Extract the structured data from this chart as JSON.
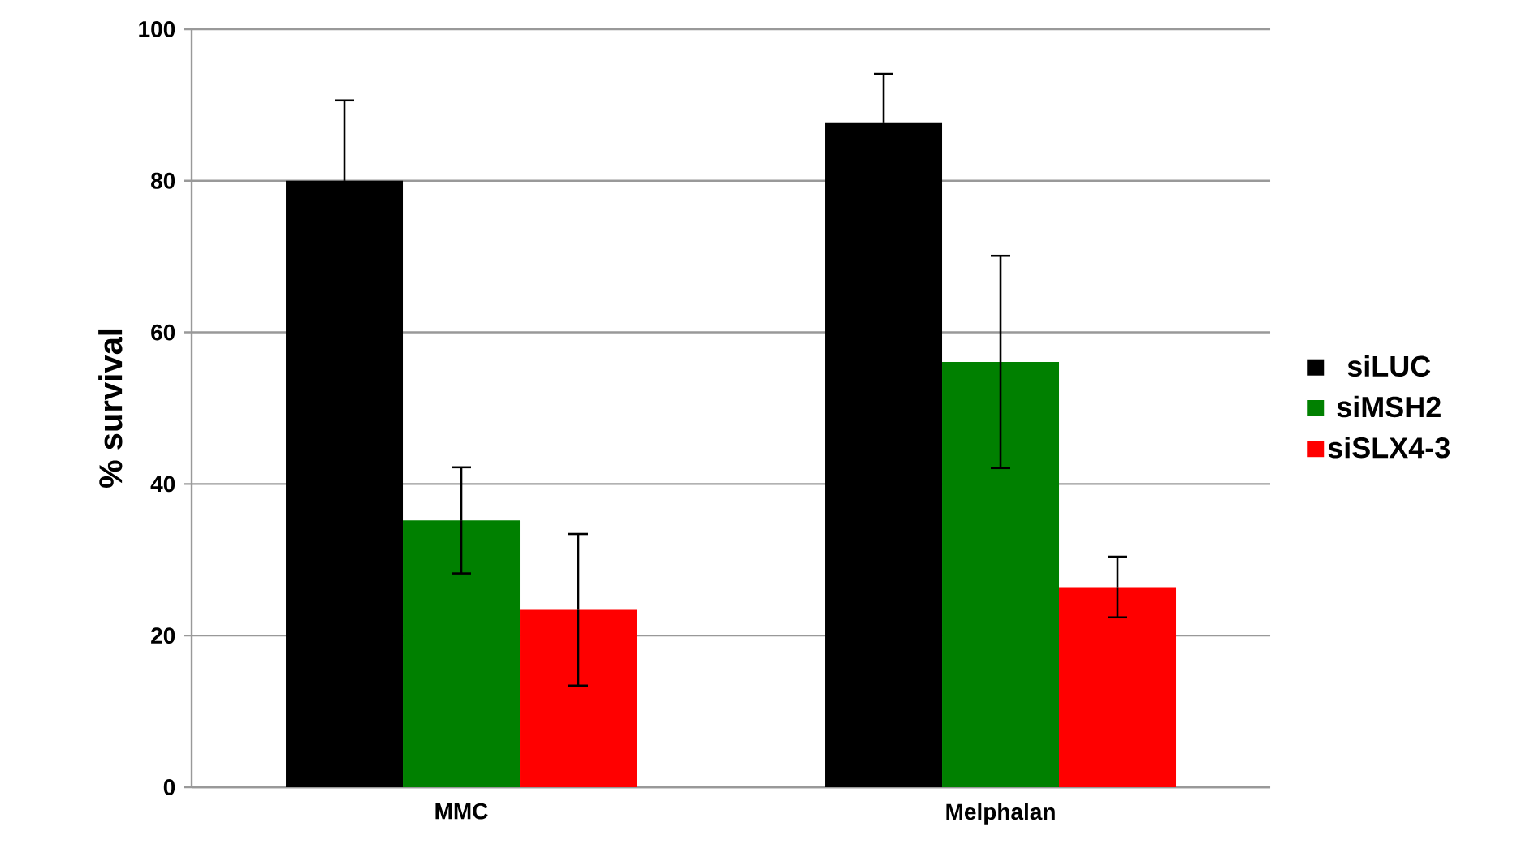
{
  "chart_data": {
    "type": "bar",
    "ylabel": "% survival",
    "categories": [
      "MMC",
      "Melphalan"
    ],
    "series": [
      {
        "name": "siLUC",
        "color": "#000000",
        "values": [
          80,
          87.7
        ],
        "errors": [
          10.6,
          6.4
        ]
      },
      {
        "name": "siMSH2",
        "color": "#008000",
        "values": [
          35.2,
          56.1
        ],
        "errors": [
          7,
          14
        ]
      },
      {
        "name": "siSLX4-3",
        "color": "#ff0000",
        "values": [
          23.4,
          26.4
        ],
        "errors": [
          10,
          4
        ]
      }
    ],
    "ylim": [
      0,
      100
    ],
    "yticks": [
      0,
      20,
      40,
      60,
      80,
      100
    ],
    "grid": "y",
    "legend": "right"
  }
}
